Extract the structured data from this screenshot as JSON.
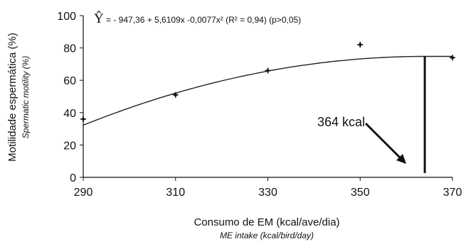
{
  "chart_data": {
    "type": "scatter",
    "title": "",
    "equation": {
      "symbol": "Ŷ",
      "text": "= - 947,36 + 5,6109x -0,0077x² (R² = 0,94) (p>0,05)"
    },
    "xlabel": "Consumo de EM (kcal/ave/dia)",
    "xlabel_sub": "ME intake (kcal/bird/day)",
    "ylabel": "Motilidade espermática (%)",
    "ylabel_sub": "Spermatic motility (%)",
    "xlim": [
      290,
      370
    ],
    "ylim": [
      0,
      100
    ],
    "x_ticks": [
      "290",
      "310",
      "330",
      "350",
      "370"
    ],
    "y_ticks": [
      "0",
      "20",
      "40",
      "60",
      "80",
      "100"
    ],
    "points": [
      {
        "x": 290,
        "y": 36
      },
      {
        "x": 310,
        "y": 51
      },
      {
        "x": 330,
        "y": 66
      },
      {
        "x": 350,
        "y": 82
      },
      {
        "x": 370,
        "y": 74
      }
    ],
    "fit": {
      "a": -947.36,
      "b": 5.6109,
      "c": -0.0077
    },
    "vertical_line_x": 364,
    "annotation": "364 kcal",
    "grid": false,
    "legend": "none"
  }
}
